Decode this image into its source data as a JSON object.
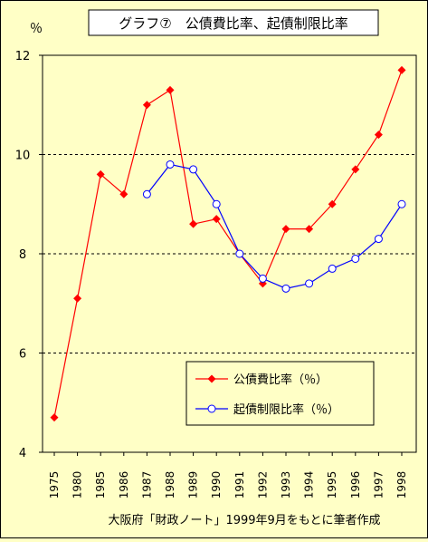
{
  "chart_data": {
    "type": "line",
    "title": "グラフ⑦　公債費比率、起債制限比率",
    "ylabel": "％",
    "xlabel": "",
    "caption": "大阪府「財政ノート」1999年9月をもとに筆者作成",
    "categories": [
      "1975",
      "1980",
      "1985",
      "1986",
      "1987",
      "1988",
      "1989",
      "1990",
      "1991",
      "1992",
      "1993",
      "1994",
      "1995",
      "1996",
      "1997",
      "1998"
    ],
    "ylim": [
      4,
      12
    ],
    "yticks": [
      "4",
      "6",
      "8",
      "10",
      "12"
    ],
    "grid": "horizontal dashed",
    "legend_position": "bottom-right",
    "series": [
      {
        "name": "公債費比率（％）",
        "color": "#ff0000",
        "marker": "filled-diamond",
        "values": [
          4.7,
          7.1,
          9.6,
          9.2,
          11.0,
          11.3,
          8.6,
          8.7,
          8.0,
          7.4,
          8.5,
          8.5,
          9.0,
          9.7,
          10.4,
          11.7
        ]
      },
      {
        "name": "起債制限比率（％）",
        "color": "#0000ff",
        "marker": "open-circle",
        "values": [
          null,
          null,
          null,
          null,
          9.2,
          9.8,
          9.7,
          9.0,
          8.0,
          7.5,
          7.3,
          7.4,
          7.7,
          7.9,
          8.3,
          9.0
        ]
      }
    ]
  }
}
